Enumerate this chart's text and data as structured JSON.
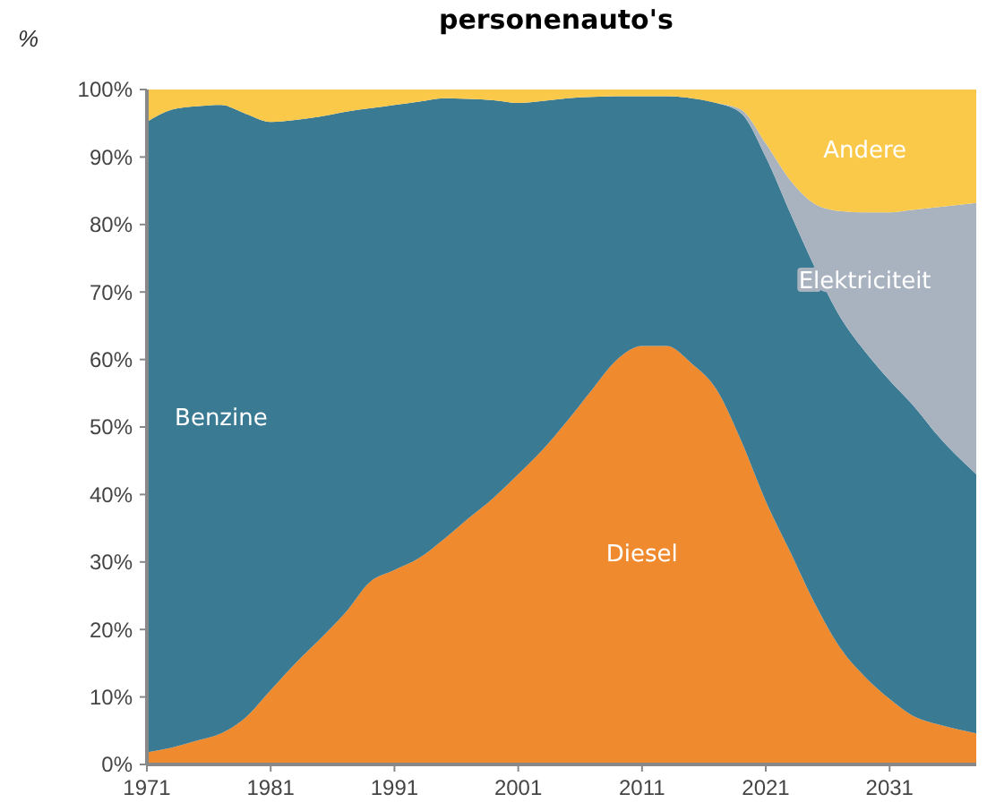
{
  "chart_data": {
    "type": "area",
    "stacked": true,
    "title": "personenauto's",
    "ylabel": "%",
    "x": [
      1971,
      1973,
      1975,
      1977,
      1979,
      1981,
      1983,
      1985,
      1987,
      1989,
      1991,
      1993,
      1995,
      1997,
      1999,
      2001,
      2003,
      2005,
      2007,
      2009,
      2011,
      2013,
      2015,
      2017,
      2019,
      2021,
      2023,
      2025,
      2027,
      2029,
      2031,
      2033,
      2035,
      2038
    ],
    "series": [
      {
        "name": "Diesel",
        "color": "#ef8a2e",
        "values": [
          1.8,
          2.5,
          3.5,
          4.6,
          7,
          11,
          15,
          18.6,
          22.4,
          27,
          28.8,
          30.6,
          33.4,
          36.5,
          39.5,
          43,
          46.7,
          51,
          55.6,
          60,
          62,
          62,
          59.4,
          55.6,
          48,
          39,
          31.4,
          23.7,
          17.3,
          13,
          9.7,
          7.1,
          5.9,
          4.6
        ]
      },
      {
        "name": "Benzine",
        "color": "#3a7a92",
        "values": [
          93.4,
          94.5,
          94,
          93.1,
          89.4,
          84.2,
          80.5,
          77.4,
          74.3,
          70.2,
          68.9,
          67.6,
          65.3,
          62.1,
          58.9,
          55,
          51.6,
          47.7,
          43.3,
          39,
          37,
          37,
          39.3,
          42.4,
          48.5,
          51,
          50.2,
          49.8,
          49,
          48.2,
          47.2,
          45.9,
          42.6,
          38.4
        ]
      },
      {
        "name": "Elektriciteit",
        "color": "#a9b3c0",
        "values": [
          0,
          0,
          0,
          0,
          0,
          0,
          0,
          0,
          0,
          0,
          0,
          0,
          0,
          0,
          0,
          0,
          0,
          0,
          0,
          0,
          0,
          0,
          0,
          0,
          0.5,
          2,
          4.9,
          9.5,
          15.7,
          20.6,
          24.9,
          29.2,
          34.1,
          40.2
        ]
      },
      {
        "name": "Andere",
        "color": "#fbc94a",
        "values": [
          4.8,
          3,
          2.5,
          2.3,
          3.6,
          4.8,
          4.5,
          4,
          3.3,
          2.8,
          2.3,
          1.8,
          1.3,
          1.4,
          1.6,
          2,
          1.7,
          1.3,
          1.1,
          1,
          1,
          1,
          1.3,
          2,
          3,
          8,
          13.5,
          17,
          18,
          18.2,
          18.2,
          17.8,
          17.4,
          16.8
        ]
      }
    ],
    "xlim": [
      1971,
      2038
    ],
    "xticks": [
      1971,
      1981,
      1991,
      2001,
      2011,
      2021,
      2031
    ],
    "ylim": [
      0,
      100
    ],
    "yticks": [
      {
        "value": 0,
        "label": "0%"
      },
      {
        "value": 10,
        "label": "10%"
      },
      {
        "value": 20,
        "label": "20%"
      },
      {
        "value": 30,
        "label": "30%"
      },
      {
        "value": 40,
        "label": "40%"
      },
      {
        "value": 50,
        "label": "50%"
      },
      {
        "value": 60,
        "label": "60%"
      },
      {
        "value": 70,
        "label": "70%"
      },
      {
        "value": 80,
        "label": "80%"
      },
      {
        "value": 90,
        "label": "90%"
      },
      {
        "value": 100,
        "label": "100%"
      }
    ],
    "grid": false
  }
}
